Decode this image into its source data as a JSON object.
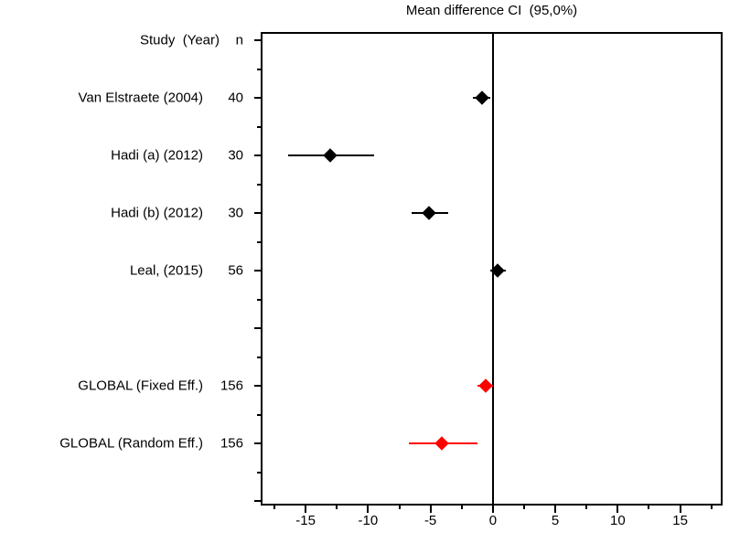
{
  "chart_data": {
    "type": "scatter",
    "variant": "forest-plot",
    "title": "Mean difference CI  (95,0%)",
    "columns": {
      "study": "Study  (Year)",
      "n": "n"
    },
    "studies": [
      {
        "label": "Van Elstraete (2004)",
        "n": "40",
        "mean": -0.9,
        "ci_low": -1.6,
        "ci_high": -0.2,
        "color": "#000000",
        "row": 1
      },
      {
        "label": "Hadi (a) (2012)",
        "n": "30",
        "mean": -13.0,
        "ci_low": -16.4,
        "ci_high": -9.5,
        "color": "#000000",
        "row": 2
      },
      {
        "label": "Hadi (b) (2012)",
        "n": "30",
        "mean": -5.1,
        "ci_low": -6.5,
        "ci_high": -3.6,
        "color": "#000000",
        "row": 3
      },
      {
        "label": "Leal, (2015)",
        "n": "56",
        "mean": 0.4,
        "ci_low": -0.2,
        "ci_high": 1.0,
        "color": "#000000",
        "row": 4
      },
      {
        "label": "GLOBAL (Fixed Eff.)",
        "n": "156",
        "mean": -0.6,
        "ci_low": -1.2,
        "ci_high": 0.0,
        "color": "#ff0000",
        "row": 6
      },
      {
        "label": "GLOBAL (Random Eff.)",
        "n": "156",
        "mean": -4.1,
        "ci_low": -6.7,
        "ci_high": -1.2,
        "color": "#ff0000",
        "row": 7
      }
    ],
    "x_axis": {
      "range": [
        -18.6,
        18.4
      ],
      "major_ticks": [
        -15,
        -10,
        -5,
        0,
        5,
        10,
        15
      ],
      "minor_ticks": [
        -17.5,
        -12.5,
        -7.5,
        -2.5,
        2.5,
        7.5,
        12.5,
        17.5
      ],
      "zero_reference_line": 0
    },
    "y_axis": {
      "rows_total": 9,
      "grid": false
    },
    "legend": "none",
    "colors": {
      "study_marker": "#000000",
      "global_marker": "#ff0000",
      "axis": "#000000",
      "background": "#ffffff"
    }
  }
}
